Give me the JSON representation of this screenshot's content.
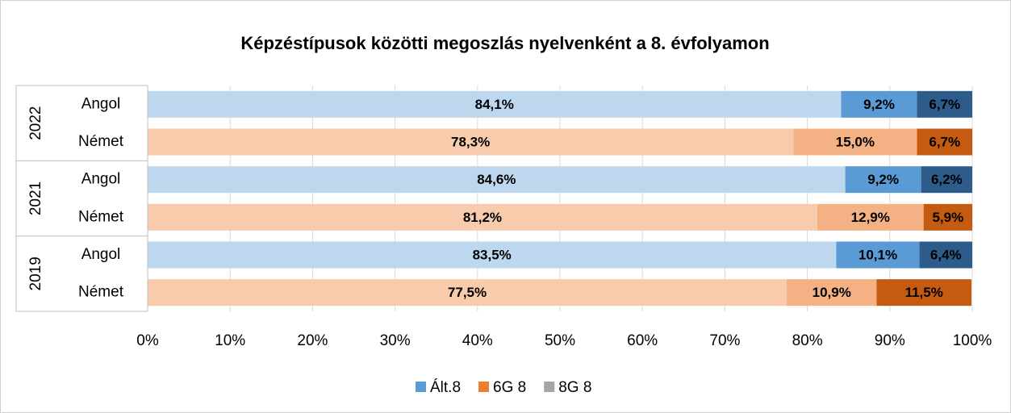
{
  "chart_data": {
    "type": "stacked-bar-horizontal",
    "title": "Képzéstípusok közötti megoszlás nyelvenként a 8. évfolyamon",
    "groups": [
      "2022",
      "2021",
      "2019"
    ],
    "categories": [
      "Angol",
      "Német",
      "Angol",
      "Német",
      "Angol",
      "Német"
    ],
    "series": [
      {
        "name": "Ált.8",
        "color": "#5b9bd5",
        "bar_colors": [
          "#bdd7ee",
          "#f8cbad",
          "#bdd7ee",
          "#f8cbad",
          "#bdd7ee",
          "#f8cbad"
        ],
        "label_color": "#000000",
        "values": [
          84.1,
          78.3,
          84.6,
          81.2,
          83.5,
          77.5
        ],
        "value_labels": [
          "84,1%",
          "78,3%",
          "84,6%",
          "81,2%",
          "83,5%",
          "77,5%"
        ]
      },
      {
        "name": "6G 8",
        "color": "#ed7d31",
        "bar_colors": [
          "#5b9bd5",
          "#f4b183",
          "#5b9bd5",
          "#f4b183",
          "#5b9bd5",
          "#f4b183"
        ],
        "label_color": "#000000",
        "values": [
          9.2,
          15.0,
          9.2,
          12.9,
          10.1,
          10.9
        ],
        "value_labels": [
          "9,2%",
          "15,0%",
          "9,2%",
          "12,9%",
          "10,1%",
          "10,9%"
        ]
      },
      {
        "name": "8G 8",
        "color": "#a5a5a5",
        "bar_colors": [
          "#2e5c8a",
          "#c55a11",
          "#2e5c8a",
          "#c55a11",
          "#2e5c8a",
          "#c55a11"
        ],
        "label_color": "#ffffff",
        "values": [
          6.7,
          6.7,
          6.2,
          5.9,
          6.4,
          11.5
        ],
        "value_labels": [
          "6,7%",
          "6,7%",
          "6,2%",
          "5,9%",
          "6,4%",
          "11,5%"
        ]
      }
    ],
    "xlim": [
      0,
      100
    ],
    "xticks": [
      {
        "value": 0,
        "label": "0%"
      },
      {
        "value": 10,
        "label": "10%"
      },
      {
        "value": 20,
        "label": "20%"
      },
      {
        "value": 30,
        "label": "30%"
      },
      {
        "value": 40,
        "label": "40%"
      },
      {
        "value": 50,
        "label": "50%"
      },
      {
        "value": 60,
        "label": "60%"
      },
      {
        "value": 70,
        "label": "70%"
      },
      {
        "value": 80,
        "label": "80%"
      },
      {
        "value": 90,
        "label": "90%"
      },
      {
        "value": 100,
        "label": "100%"
      }
    ],
    "grid": true,
    "legend": "bottom"
  }
}
